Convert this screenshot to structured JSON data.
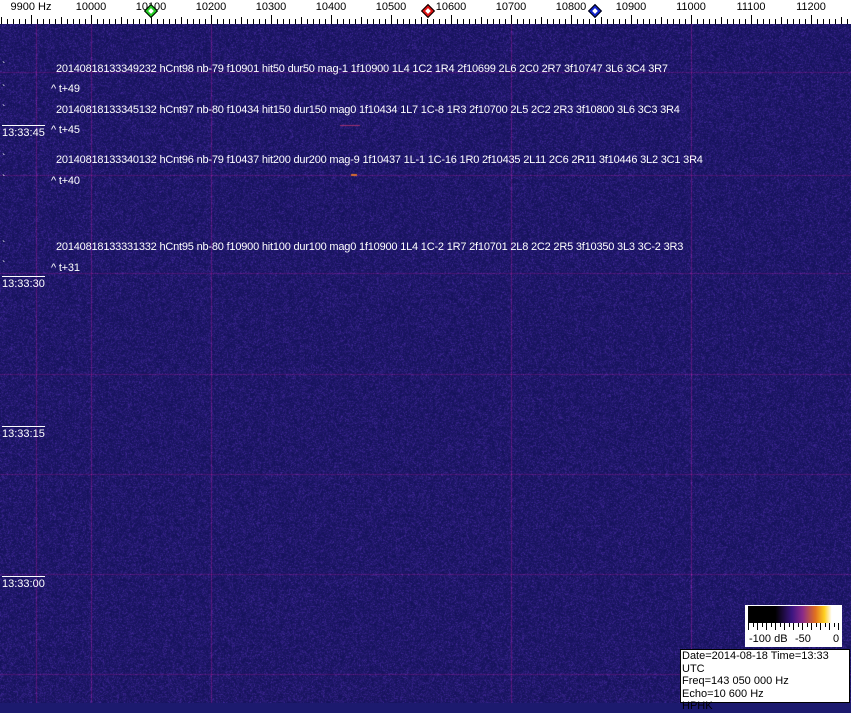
{
  "frequency_axis": {
    "labels": [
      "9900 Hz",
      "10000",
      "10100",
      "10200",
      "10300",
      "10400",
      "10500",
      "10600",
      "10700",
      "10800",
      "10900",
      "11000",
      "11100",
      "11200"
    ],
    "markers": [
      {
        "name": "green-marker",
        "color": "#22cc22",
        "freq_hz": 10100
      },
      {
        "name": "red-marker",
        "color": "#dd1111",
        "freq_hz": 10562
      },
      {
        "name": "blue-marker",
        "color": "#1122cc",
        "freq_hz": 10840
      }
    ]
  },
  "waterfall": {
    "background_color": "#1c1a6e",
    "detections": [
      {
        "text": "20140818133349232 hCnt98 nb-79 f10901 hit50 dur50 mag-1 1f10900 1L4 1C2 1R4 2f10699 2L6 2C0 2R7 3f10747 3L6 3C4 3R7",
        "offset": "^ t+49"
      },
      {
        "text": "20140818133345132 hCnt97 nb-80 f10434 hit150 dur150 mag0 1f10434 1L7 1C-8 1R3 2f10700 2L5 2C2 2R3 3f10800 3L6 3C3 3R4",
        "offset": "^ t+45"
      },
      {
        "text": "20140818133340132 hCnt96 nb-79 f10437 hit200 dur200 mag-9 1f10437 1L-1 1C-16 1R0 2f10435 2L11 2C6 2R11 3f10446 3L2 3C1 3R4",
        "offset": "^ t+40"
      },
      {
        "text": "20140818133331332 hCnt95 nb-80 f10900 hit100 dur100 mag0 1f10900 1L4 1C-2 1R7 2f10701 2L8 2C2 2R5 3f10350 3L3 3C-2 3R3",
        "offset": "^ t+31"
      }
    ],
    "time_labels": [
      "13:33:45",
      "13:33:30",
      "13:33:15",
      "13:33:00"
    ]
  },
  "color_scale": {
    "labels": [
      "-100 dB",
      "-50",
      "0"
    ]
  },
  "info_box": {
    "date_time": "Date=2014-08-18 Time=13:33 UTC",
    "freq": "Freq=143 050 000 Hz",
    "echo": "Echo=10 600 Hz",
    "station": "HPHK"
  }
}
